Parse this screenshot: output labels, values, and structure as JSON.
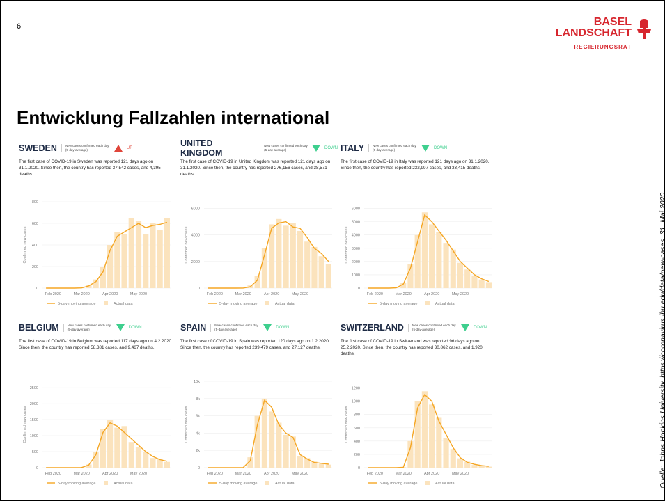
{
  "slide_number": "6",
  "logo": {
    "line1": "BASEL",
    "line2": "LANDSCHAFT",
    "line3": "REGIERUNGSRAT"
  },
  "title": "Entwicklung Fallzahlen international",
  "source": "Quelle: Johns Hopkins University, https://coronavirus.jhu.edu/data/new-cases, 31. Mai 2020",
  "chart_data": [
    {
      "type": "bar",
      "title": "SWEDEN",
      "subtitle": "New cases confirmed each day (5-day-average)",
      "trend": "UP",
      "trend_color": "#e0453a",
      "annotation": "The first case of COVID-19 in Sweden was reported 121 days ago on 31.1.2020. Since then, the country has reported 37,542 cases, and 4,395 deaths.",
      "y_label": "Confirmed new cases",
      "categories": [
        null,
        "Feb 2020",
        null,
        null,
        null,
        "Mar 2020",
        null,
        null,
        null,
        "Apr 2020",
        null,
        null,
        null,
        "May 2020",
        null,
        null,
        null,
        null
      ],
      "series": [
        {
          "name": "Actual data",
          "type": "bar",
          "color": "#fbe3bd",
          "values": [
            0,
            1,
            0,
            0,
            1,
            5,
            30,
            80,
            200,
            400,
            520,
            500,
            650,
            620,
            500,
            600,
            540,
            650
          ]
        },
        {
          "name": "5-day moving average",
          "type": "line",
          "color": "#f5a623",
          "values": [
            0,
            0,
            0,
            0,
            0,
            2,
            20,
            60,
            150,
            350,
            480,
            520,
            560,
            600,
            560,
            580,
            590,
            610
          ]
        }
      ],
      "ylim": [
        0,
        800
      ],
      "yticks": [
        0,
        200,
        400,
        600,
        800
      ]
    },
    {
      "type": "bar",
      "title": "UNITED KINGDOM",
      "subtitle": "New cases confirmed each day (5-day-average)",
      "trend": "DOWN",
      "trend_color": "#3ecf8e",
      "annotation": "The first case of COVID-19 in United Kingdom was reported 121 days ago on 31.1.2020. Since then, the country has reported 276,156 cases, and 38,571 deaths.",
      "y_label": "Confirmed new cases",
      "categories": [
        null,
        "Feb 2020",
        null,
        null,
        null,
        "Mar 2020",
        null,
        null,
        null,
        "Apr 2020",
        null,
        null,
        null,
        "May 2020",
        null,
        null,
        null,
        null
      ],
      "series": [
        {
          "name": "Actual data",
          "type": "bar",
          "color": "#fbe3bd",
          "values": [
            0,
            0,
            0,
            0,
            1,
            10,
            200,
            900,
            3000,
            4800,
            5200,
            4700,
            4900,
            4300,
            3500,
            3100,
            2400,
            1800
          ]
        },
        {
          "name": "5-day moving average",
          "type": "line",
          "color": "#f5a623",
          "values": [
            0,
            0,
            0,
            0,
            0,
            5,
            100,
            600,
            2500,
            4500,
            4900,
            5000,
            4600,
            4500,
            3800,
            3000,
            2600,
            2000
          ]
        }
      ],
      "ylim": [
        0,
        6500
      ],
      "yticks": [
        0,
        2000,
        4000,
        6000
      ]
    },
    {
      "type": "bar",
      "title": "ITALY",
      "subtitle": "New cases confirmed each day (5-day-average)",
      "trend": "DOWN",
      "trend_color": "#3ecf8e",
      "annotation": "The first case of COVID-19 in Italy was reported 121 days ago on 31.1.2020. Since then, the country has reported 232,997 cases, and 33,415 deaths.",
      "y_label": "Confirmed new cases",
      "categories": [
        null,
        "Feb 2020",
        null,
        null,
        null,
        "Mar 2020",
        null,
        null,
        null,
        "Apr 2020",
        null,
        null,
        null,
        "May 2020",
        null,
        null,
        null,
        null
      ],
      "series": [
        {
          "name": "Actual data",
          "type": "bar",
          "color": "#fbe3bd",
          "values": [
            0,
            0,
            0,
            0,
            30,
            400,
            1800,
            4000,
            5700,
            4800,
            4200,
            3400,
            2900,
            1900,
            1400,
            900,
            650,
            450
          ]
        },
        {
          "name": "5-day moving average",
          "type": "line",
          "color": "#f5a623",
          "values": [
            0,
            0,
            0,
            0,
            20,
            300,
            1500,
            3500,
            5500,
            5000,
            4300,
            3600,
            2800,
            2000,
            1500,
            1000,
            700,
            500
          ]
        }
      ],
      "ylim": [
        0,
        6500
      ],
      "yticks": [
        0,
        1000,
        2000,
        3000,
        4000,
        5000,
        6000
      ]
    },
    {
      "type": "bar",
      "title": "BELGIUM",
      "subtitle": "New cases confirmed each day (5-day-average)",
      "trend": "DOWN",
      "trend_color": "#3ecf8e",
      "annotation": "The first case of COVID-19 in Belgium was reported 117 days ago on 4.2.2020. Since then, the country has reported 58,381 cases, and 9,467 deaths.",
      "y_label": "Confirmed new cases",
      "categories": [
        null,
        "Feb 2020",
        null,
        null,
        null,
        "Mar 2020",
        null,
        null,
        null,
        "Apr 2020",
        null,
        null,
        null,
        "May 2020",
        null,
        null,
        null,
        null
      ],
      "series": [
        {
          "name": "Actual data",
          "type": "bar",
          "color": "#fbe3bd",
          "values": [
            0,
            0,
            0,
            0,
            0,
            8,
            100,
            500,
            1200,
            1500,
            1250,
            1300,
            800,
            650,
            480,
            300,
            260,
            180
          ]
        },
        {
          "name": "5-day moving average",
          "type": "line",
          "color": "#f5a623",
          "values": [
            0,
            0,
            0,
            0,
            0,
            5,
            80,
            400,
            1100,
            1400,
            1300,
            1100,
            900,
            700,
            500,
            350,
            250,
            200
          ]
        }
      ],
      "ylim": [
        0,
        2700
      ],
      "yticks": [
        0,
        500,
        1000,
        1500,
        2000,
        2500
      ]
    },
    {
      "type": "bar",
      "title": "SPAIN",
      "subtitle": "New cases confirmed each day (5-day-average)",
      "trend": "DOWN",
      "trend_color": "#3ecf8e",
      "annotation": "The first case of COVID-19 in Spain was reported 120 days ago on 1.2.2020. Since then, the country has reported 239,479 cases, and 27,127 deaths.",
      "y_label": "Confirmed new cases",
      "categories": [
        null,
        "Feb 2020",
        null,
        null,
        null,
        "Mar 2020",
        null,
        null,
        null,
        "Apr 2020",
        null,
        null,
        null,
        "May 2020",
        null,
        null,
        null,
        null
      ],
      "series": [
        {
          "name": "Actual data",
          "type": "bar",
          "color": "#fbe3bd",
          "values": [
            0,
            0,
            0,
            0,
            0,
            40,
            1200,
            6000,
            8000,
            6500,
            5200,
            3800,
            3600,
            1300,
            1100,
            700,
            450,
            350
          ]
        },
        {
          "name": "5-day moving average",
          "type": "line",
          "color": "#f5a623",
          "values": [
            0,
            0,
            0,
            0,
            0,
            20,
            800,
            5000,
            7800,
            7000,
            5000,
            4000,
            3500,
            1500,
            1000,
            600,
            500,
            400
          ]
        }
      ],
      "ylim": [
        0,
        10000
      ],
      "yticks": [
        0,
        {
          "value": 2000,
          "label": "2k"
        },
        {
          "value": 4000,
          "label": "4k"
        },
        {
          "value": 6000,
          "label": "6k"
        },
        {
          "value": 8000,
          "label": "8k"
        },
        {
          "value": 10000,
          "label": "10k"
        }
      ]
    },
    {
      "type": "bar",
      "title": "SWITZERLAND",
      "subtitle": "New cases confirmed each day (5-day-average)",
      "trend": "DOWN",
      "trend_color": "#3ecf8e",
      "annotation": "The first case of COVID-19 in Switzerland was reported 96 days ago on 25.2.2020. Since then, the country has reported 30,862 cases, and 1,920 deaths.",
      "y_label": "Confirmed new cases",
      "categories": [
        null,
        "Feb 2020",
        null,
        null,
        null,
        "Mar 2020",
        null,
        null,
        null,
        "Apr 2020",
        null,
        null,
        null,
        "May 2020",
        null,
        null,
        null,
        null
      ],
      "series": [
        {
          "name": "Actual data",
          "type": "bar",
          "color": "#fbe3bd",
          "values": [
            0,
            0,
            0,
            0,
            0,
            8,
            400,
            1000,
            1150,
            950,
            750,
            450,
            280,
            140,
            90,
            40,
            25,
            15
          ]
        },
        {
          "name": "5-day moving average",
          "type": "line",
          "color": "#f5a623",
          "values": [
            0,
            0,
            0,
            0,
            0,
            5,
            300,
            900,
            1100,
            1000,
            700,
            500,
            300,
            150,
            80,
            50,
            30,
            20
          ]
        }
      ],
      "ylim": [
        0,
        1300
      ],
      "yticks": [
        0,
        200,
        400,
        600,
        800,
        1000,
        1200
      ]
    }
  ]
}
